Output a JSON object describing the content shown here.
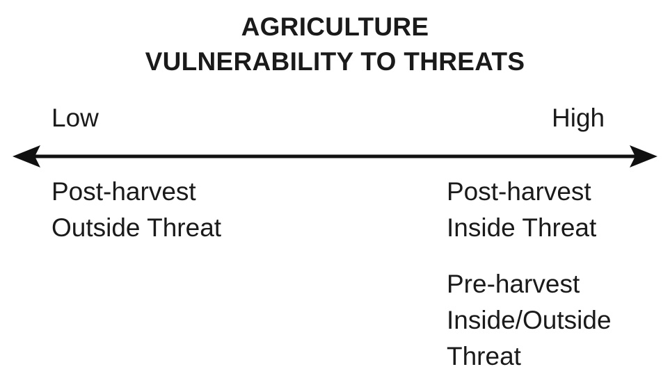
{
  "title": {
    "line1": "AGRICULTURE",
    "line2": "VULNERABILITY TO THREATS"
  },
  "scale": {
    "low_label": "Low",
    "high_label": "High"
  },
  "items": {
    "low_side": {
      "line1": "Post-harvest",
      "line2": "Outside Threat"
    },
    "high_side_1": {
      "line1": "Post-harvest",
      "line2": "Inside Threat"
    },
    "high_side_2": {
      "line1": "Pre-harvest",
      "line2": "Inside/Outside",
      "line3": "Threat"
    }
  },
  "colors": {
    "text": "#1a1a1a",
    "arrow": "#111111",
    "background": "#ffffff"
  }
}
